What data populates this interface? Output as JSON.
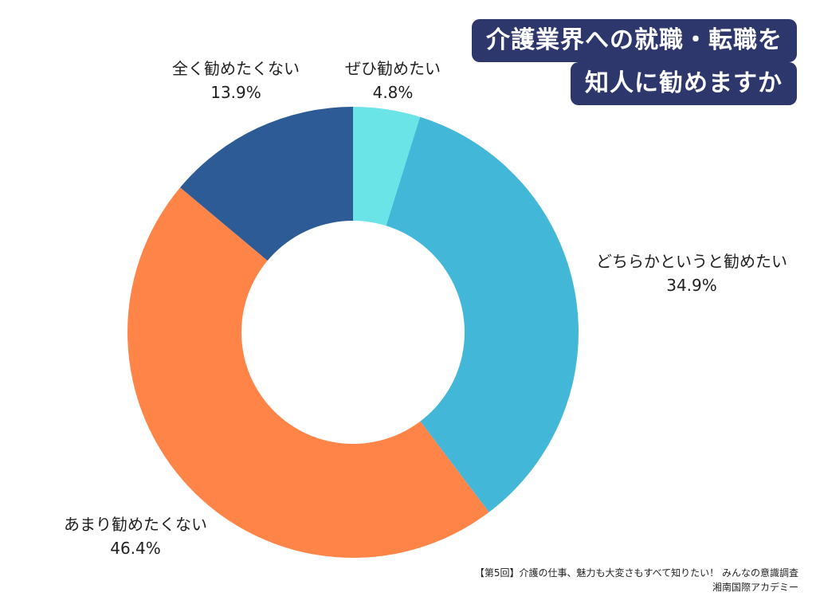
{
  "title": {
    "line1": "介護業界への就職・転職を",
    "line2": "知人に勧めますか",
    "bg_color": "#2e376b"
  },
  "footer": {
    "line1": "【第5回】介護の仕事、魅力も大変さもすべて知りたい！ みんなの意識調査",
    "line2": "湘南国際アカデミー"
  },
  "chart_data": {
    "type": "pie",
    "donut": true,
    "title": "介護業界への就職・転職を知人に勧めますか",
    "unit": "%",
    "start": "12 o'clock, clockwise",
    "slices": [
      {
        "label": "ぜひ勧めたい",
        "value": 4.8,
        "value_text": "4.8%",
        "color": "#6be4e8"
      },
      {
        "label": "どちらかというと勧めたい",
        "value": 34.9,
        "value_text": "34.9%",
        "color": "#42b7d8"
      },
      {
        "label": "あまり勧めたくない",
        "value": 46.4,
        "value_text": "46.4%",
        "color": "#ff8447"
      },
      {
        "label": "全く勧めたくない",
        "value": 13.9,
        "value_text": "13.9%",
        "color": "#2c5b95"
      }
    ]
  }
}
